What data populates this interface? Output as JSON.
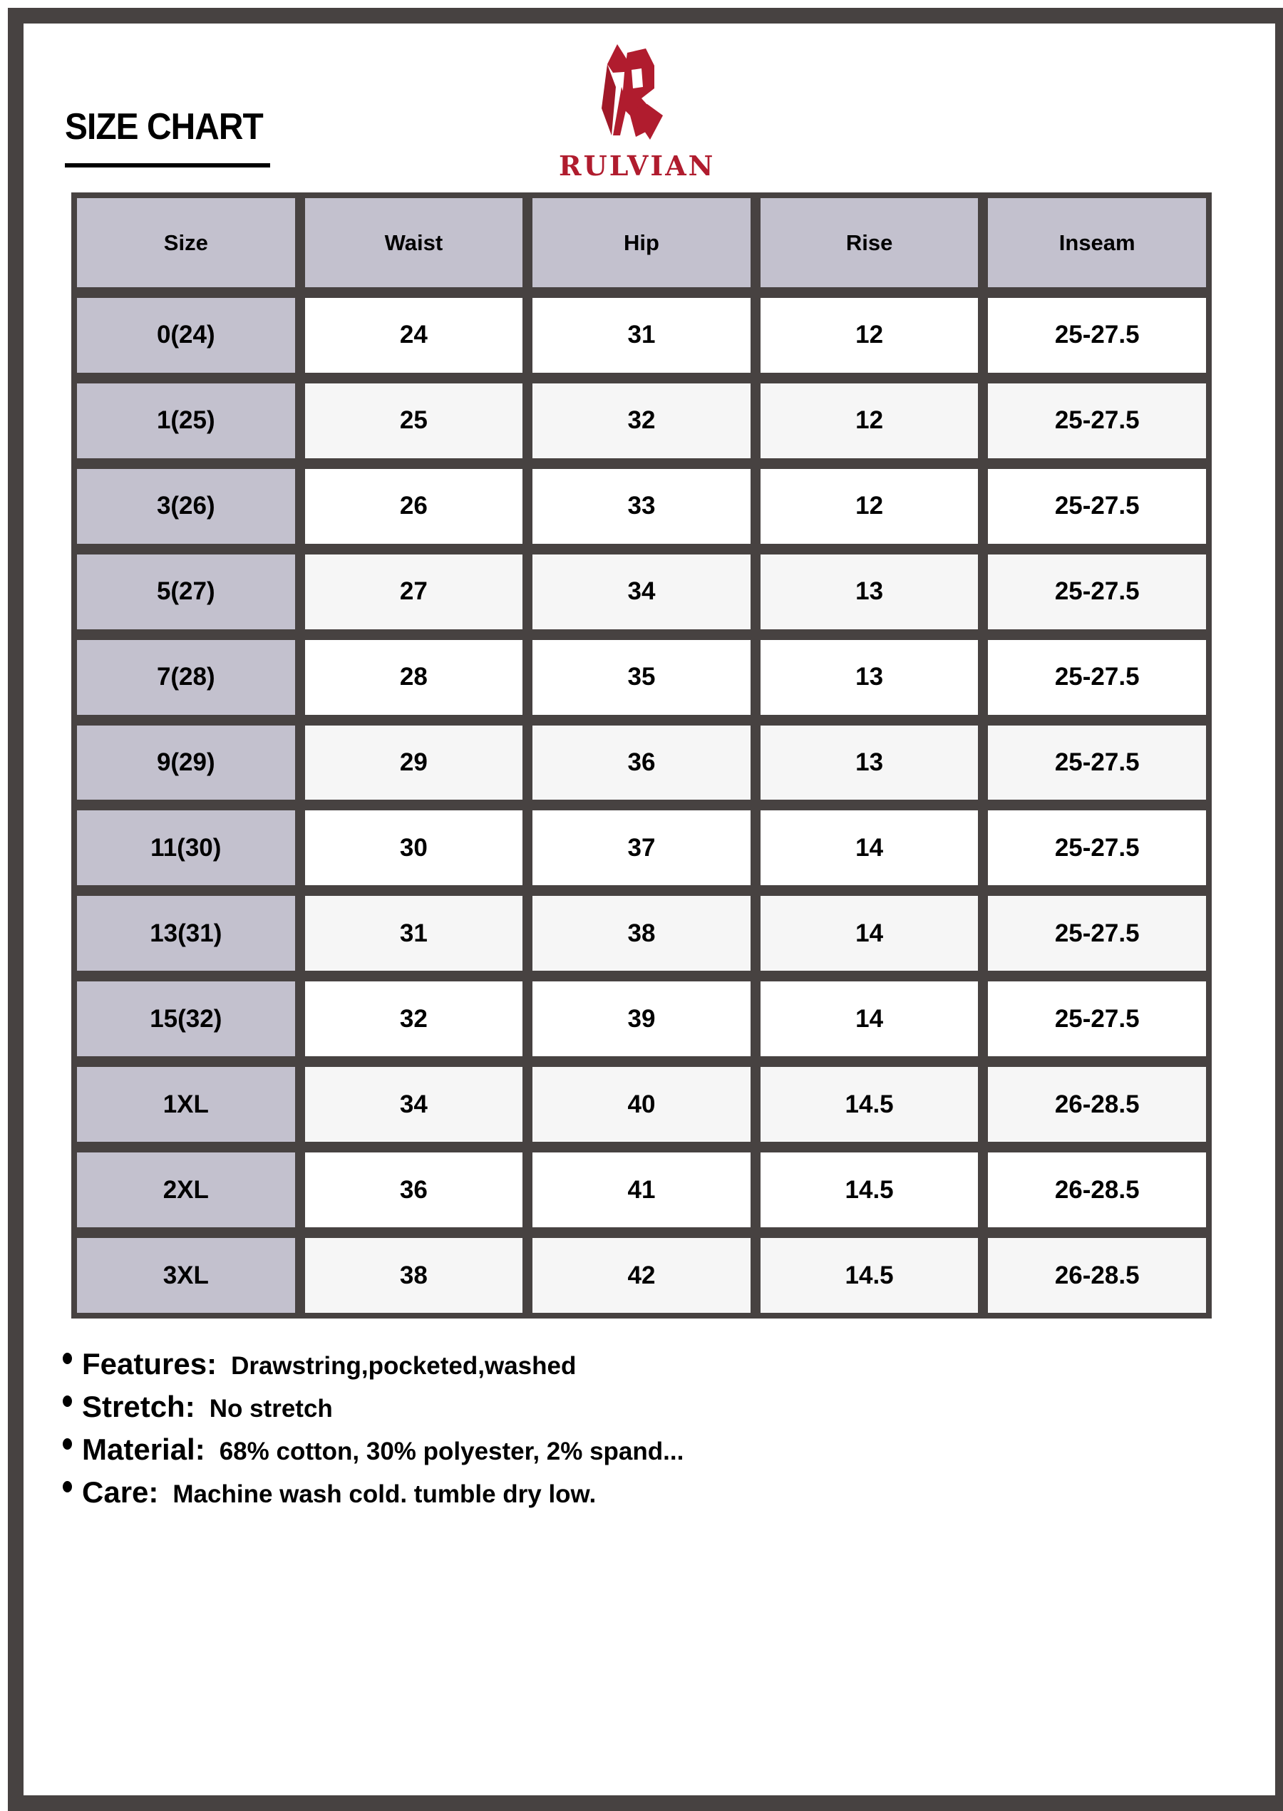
{
  "title": "SIZE CHART",
  "brand": {
    "name": "RULVIAN",
    "color": "#b01c2e"
  },
  "colors": {
    "border": "#474241",
    "header_bg": "#c3c1ce",
    "row_alt": "#f6f6f6"
  },
  "table": {
    "headers": [
      "Size",
      "Waist",
      "Hip",
      "Rise",
      "Inseam"
    ],
    "rows": [
      [
        "0(24)",
        "24",
        "31",
        "12",
        "25-27.5"
      ],
      [
        "1(25)",
        "25",
        "32",
        "12",
        "25-27.5"
      ],
      [
        "3(26)",
        "26",
        "33",
        "12",
        "25-27.5"
      ],
      [
        "5(27)",
        "27",
        "34",
        "13",
        "25-27.5"
      ],
      [
        "7(28)",
        "28",
        "35",
        "13",
        "25-27.5"
      ],
      [
        "9(29)",
        "29",
        "36",
        "13",
        "25-27.5"
      ],
      [
        "11(30)",
        "30",
        "37",
        "14",
        "25-27.5"
      ],
      [
        "13(31)",
        "31",
        "38",
        "14",
        "25-27.5"
      ],
      [
        "15(32)",
        "32",
        "39",
        "14",
        "25-27.5"
      ],
      [
        "1XL",
        "34",
        "40",
        "14.5",
        "26-28.5"
      ],
      [
        "2XL",
        "36",
        "41",
        "14.5",
        "26-28.5"
      ],
      [
        "3XL",
        "38",
        "42",
        "14.5",
        "26-28.5"
      ]
    ]
  },
  "info": [
    {
      "label": "Features:",
      "value": "Drawstring,pocketed,washed"
    },
    {
      "label": "Stretch:",
      "value": "No stretch"
    },
    {
      "label": "Material:",
      "value": "68% cotton, 30% polyester, 2% spand..."
    },
    {
      "label": "Care:",
      "value": "Machine wash cold. tumble dry low."
    }
  ]
}
